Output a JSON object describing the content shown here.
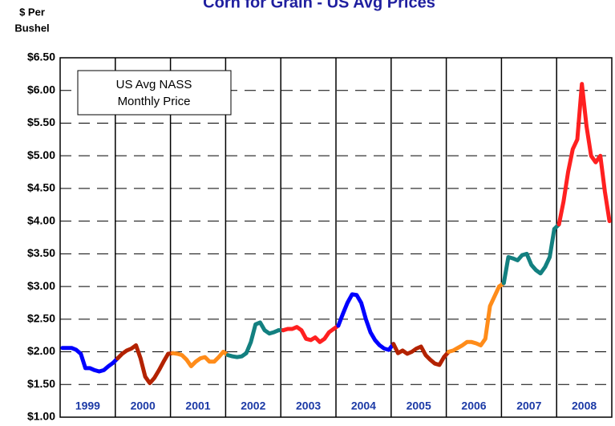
{
  "chart_data": {
    "type": "line",
    "title": "Corn for Grain - US Avg Prices",
    "ylabel": [
      "$ Per",
      "Bushel"
    ],
    "annotation": [
      "US Avg NASS",
      "Monthly Price"
    ],
    "ylim": [
      1.0,
      6.5
    ],
    "yticks": [
      {
        "value": 1.0,
        "label": "$1.00"
      },
      {
        "value": 1.5,
        "label": "$1.50"
      },
      {
        "value": 2.0,
        "label": "$2.00"
      },
      {
        "value": 2.5,
        "label": "$2.50"
      },
      {
        "value": 3.0,
        "label": "$3.00"
      },
      {
        "value": 3.5,
        "label": "$3.50"
      },
      {
        "value": 4.0,
        "label": "$4.00"
      },
      {
        "value": 4.5,
        "label": "$4.50"
      },
      {
        "value": 5.0,
        "label": "$5.00"
      },
      {
        "value": 5.5,
        "label": "$5.50"
      },
      {
        "value": 6.0,
        "label": "$6.00"
      },
      {
        "value": 6.5,
        "label": "$6.50"
      }
    ],
    "grid": true,
    "series": [
      {
        "name": "1999",
        "color": "#0000ff",
        "values": [
          2.06,
          2.06,
          2.06,
          2.03,
          1.97,
          1.75,
          1.75,
          1.72,
          1.7,
          1.72,
          1.78,
          1.83
        ]
      },
      {
        "name": "2000",
        "color": "#b32200",
        "values": [
          1.9,
          1.97,
          2.02,
          2.05,
          2.1,
          1.9,
          1.62,
          1.52,
          1.6,
          1.72,
          1.85,
          1.97
        ]
      },
      {
        "name": "2001",
        "color": "#ff8c1a",
        "values": [
          1.98,
          1.97,
          1.95,
          1.88,
          1.78,
          1.85,
          1.9,
          1.92,
          1.85,
          1.85,
          1.92,
          2.0
        ]
      },
      {
        "name": "2002",
        "color": "#138080",
        "values": [
          1.95,
          1.93,
          1.92,
          1.93,
          1.98,
          2.15,
          2.42,
          2.45,
          2.33,
          2.28,
          2.3,
          2.33
        ]
      },
      {
        "name": "2003",
        "color": "#ff2020",
        "values": [
          2.33,
          2.35,
          2.35,
          2.38,
          2.33,
          2.2,
          2.18,
          2.22,
          2.15,
          2.2,
          2.3,
          2.35
        ]
      },
      {
        "name": "2004",
        "color": "#0000ff",
        "values": [
          2.4,
          2.58,
          2.75,
          2.88,
          2.87,
          2.75,
          2.5,
          2.3,
          2.18,
          2.1,
          2.05,
          2.03
        ]
      },
      {
        "name": "2005",
        "color": "#b32200",
        "values": [
          2.12,
          1.98,
          2.02,
          1.97,
          2.0,
          2.05,
          2.08,
          1.95,
          1.88,
          1.82,
          1.8,
          1.92
        ]
      },
      {
        "name": "2006",
        "color": "#ff8c1a",
        "values": [
          2.0,
          2.02,
          2.06,
          2.1,
          2.15,
          2.15,
          2.13,
          2.1,
          2.2,
          2.7,
          2.85,
          3.0
        ]
      },
      {
        "name": "2007",
        "color": "#138080",
        "values": [
          3.05,
          3.45,
          3.43,
          3.4,
          3.48,
          3.5,
          3.33,
          3.25,
          3.2,
          3.3,
          3.45,
          3.88
        ]
      },
      {
        "name": "2008",
        "color": "#ff2020",
        "values": [
          3.95,
          4.3,
          4.75,
          5.1,
          5.25,
          6.1,
          5.45,
          5.0,
          4.9,
          5.0,
          4.45,
          4.0
        ]
      }
    ]
  }
}
